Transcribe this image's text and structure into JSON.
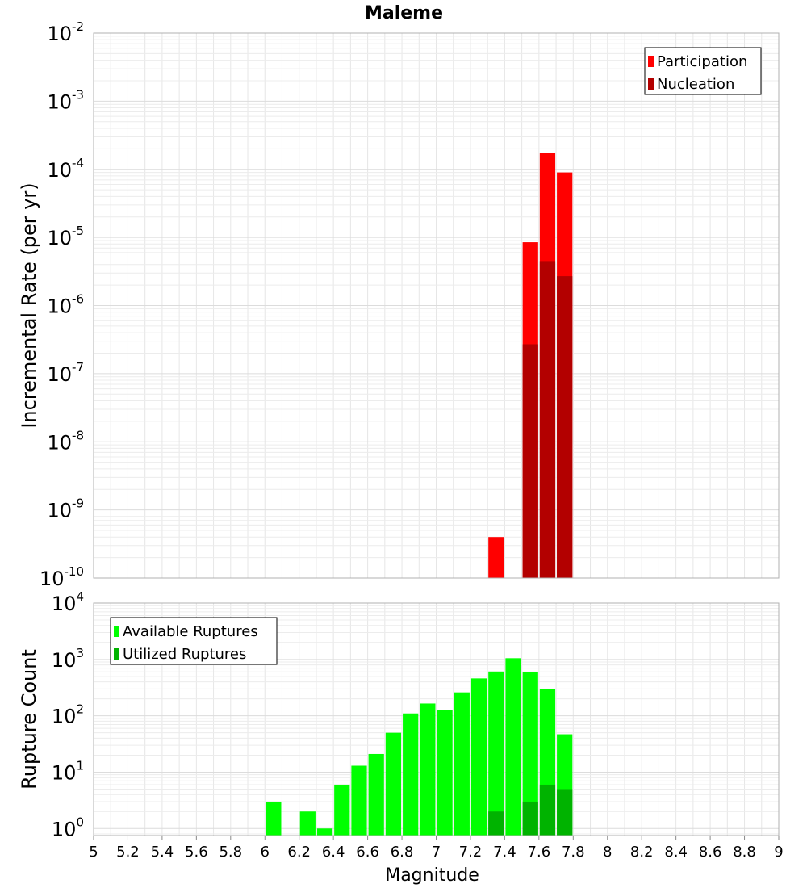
{
  "chart_data": [
    {
      "type": "bar",
      "title": "Maleme",
      "ylabel": "Incremental Rate (per yr)",
      "xlabel": "",
      "xlim": [
        5,
        9
      ],
      "ylim": [
        1e-10,
        0.01
      ],
      "yscale": "log",
      "grid": true,
      "legend_position": "top-right",
      "bin_width": 0.1,
      "colors": {
        "Participation": "#ff0000",
        "Nucleation": "#b30000"
      },
      "series": [
        {
          "name": "Participation",
          "x": [
            7.35,
            7.55,
            7.65,
            7.75
          ],
          "values": [
            4e-10,
            8.5e-06,
            0.000175,
            9e-05
          ]
        },
        {
          "name": "Nucleation",
          "x": [
            7.55,
            7.65,
            7.75
          ],
          "values": [
            2.7e-07,
            4.5e-06,
            2.7e-06
          ]
        }
      ],
      "y_ticks": [
        {
          "base": "10",
          "exp": "-10",
          "value": 1e-10
        },
        {
          "base": "10",
          "exp": "-9",
          "value": 1e-09
        },
        {
          "base": "10",
          "exp": "-8",
          "value": 1e-08
        },
        {
          "base": "10",
          "exp": "-7",
          "value": 1e-07
        },
        {
          "base": "10",
          "exp": "-6",
          "value": 1e-06
        },
        {
          "base": "10",
          "exp": "-5",
          "value": 1e-05
        },
        {
          "base": "10",
          "exp": "-4",
          "value": 0.0001
        },
        {
          "base": "10",
          "exp": "-3",
          "value": 0.001
        },
        {
          "base": "10",
          "exp": "-2",
          "value": 0.01
        }
      ]
    },
    {
      "type": "bar",
      "title": "",
      "ylabel": "Rupture Count",
      "xlabel": "Magnitude",
      "xlim": [
        5,
        9
      ],
      "ylim": [
        0.75,
        10000
      ],
      "yscale": "log",
      "grid": true,
      "legend_position": "top-left",
      "bin_width": 0.1,
      "colors": {
        "Available Ruptures": "#00ff00",
        "Utilized Ruptures": "#00b300"
      },
      "series": [
        {
          "name": "Available Ruptures",
          "x": [
            6.05,
            6.25,
            6.35,
            6.45,
            6.55,
            6.65,
            6.75,
            6.85,
            6.95,
            7.05,
            7.15,
            7.25,
            7.35,
            7.45,
            7.55,
            7.65,
            7.75
          ],
          "values": [
            3,
            2,
            1,
            6,
            13,
            21,
            50,
            110,
            165,
            125,
            260,
            460,
            610,
            1050,
            590,
            300,
            47
          ]
        },
        {
          "name": "Utilized Ruptures",
          "x": [
            7.35,
            7.55,
            7.65,
            7.75
          ],
          "values": [
            2,
            3,
            6,
            5
          ]
        }
      ],
      "y_ticks": [
        {
          "base": "10",
          "exp": "0",
          "value": 1
        },
        {
          "base": "10",
          "exp": "1",
          "value": 10
        },
        {
          "base": "10",
          "exp": "2",
          "value": 100
        },
        {
          "base": "10",
          "exp": "3",
          "value": 1000
        },
        {
          "base": "10",
          "exp": "4",
          "value": 10000
        }
      ],
      "x_ticks": [
        "5",
        "5.2",
        "5.4",
        "5.6",
        "5.8",
        "6",
        "6.2",
        "6.4",
        "6.6",
        "6.8",
        "7",
        "7.2",
        "7.4",
        "7.6",
        "7.8",
        "8",
        "8.2",
        "8.4",
        "8.6",
        "8.8",
        "9"
      ]
    }
  ]
}
